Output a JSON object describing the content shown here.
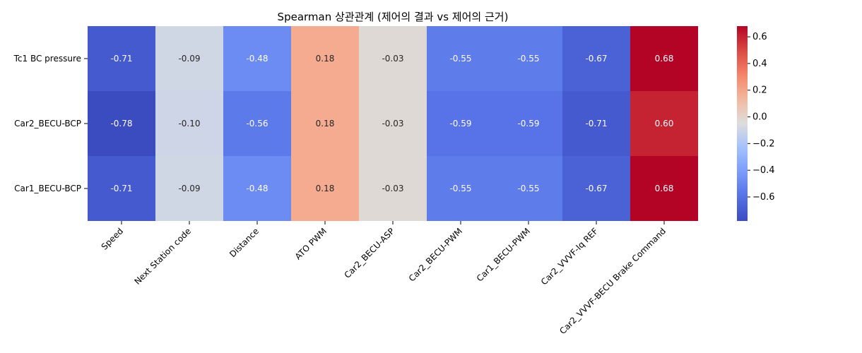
{
  "chart_data": {
    "type": "heatmap",
    "title": "Spearman 상관관계 (제어의 결과 vs 제어의 근거)",
    "rows": [
      "Tc1 BC pressure",
      "Car2_BECU-BCP",
      "Car1_BECU-BCP"
    ],
    "columns": [
      "Speed",
      "Next Station code",
      "Distance",
      "ATO PWM",
      "Car2_BECU-ASP",
      "Car2_BECU-PWM",
      "Car1_BECU-PWM",
      "Car2_VVVF-Iq REF",
      "Car2_VVVF-BECU Brake Command"
    ],
    "values": [
      [
        -0.71,
        -0.09,
        -0.48,
        0.18,
        -0.03,
        -0.55,
        -0.55,
        -0.67,
        0.68
      ],
      [
        -0.78,
        -0.1,
        -0.56,
        0.18,
        -0.03,
        -0.59,
        -0.59,
        -0.71,
        0.6
      ],
      [
        -0.71,
        -0.09,
        -0.48,
        0.18,
        -0.03,
        -0.55,
        -0.55,
        -0.67,
        0.68
      ]
    ],
    "labels": [
      [
        "-0.71",
        "-0.09",
        "-0.48",
        "0.18",
        "-0.03",
        "-0.55",
        "-0.55",
        "-0.67",
        "0.68"
      ],
      [
        "-0.78",
        "-0.10",
        "-0.56",
        "0.18",
        "-0.03",
        "-0.59",
        "-0.59",
        "-0.71",
        "0.60"
      ],
      [
        "-0.71",
        "-0.09",
        "-0.48",
        "0.18",
        "-0.03",
        "-0.55",
        "-0.55",
        "-0.67",
        "0.68"
      ]
    ],
    "colormap": "coolwarm",
    "vmin": -0.78,
    "vmax": 0.68,
    "colorbar": {
      "ticks": [
        0.6,
        0.4,
        0.2,
        0.0,
        -0.2,
        -0.4,
        -0.6
      ],
      "tick_labels": [
        "0.6",
        "0.4",
        "0.2",
        "0.0",
        "−0.2",
        "−0.4",
        "−0.6"
      ]
    }
  }
}
